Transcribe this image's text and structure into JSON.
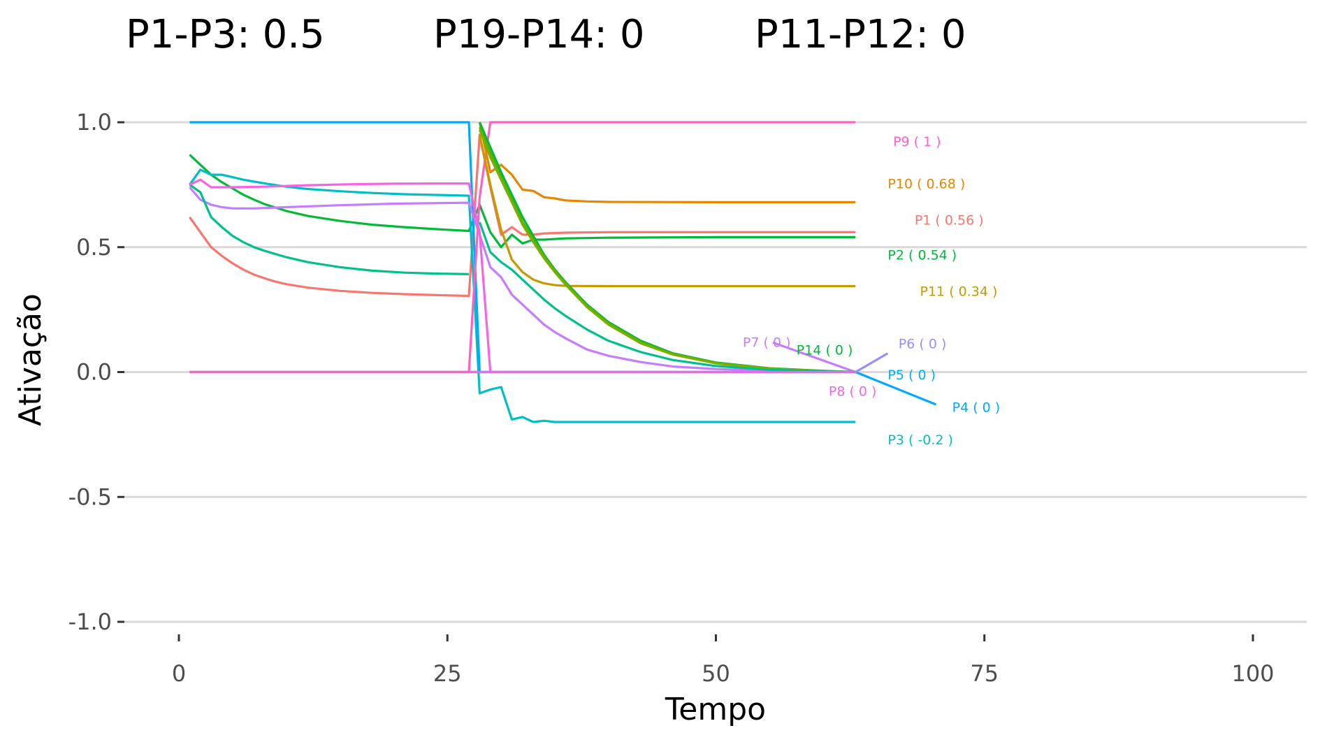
{
  "chart_data": {
    "type": "line",
    "title_parts": [
      "P1-P3:  0.5",
      "P19-P14:  0",
      "P11-P12:  0"
    ],
    "xlabel": "Tempo",
    "ylabel": "Ativação",
    "xlim": [
      -5,
      105
    ],
    "ylim": [
      -1.07,
      1.15
    ],
    "x_ticks": [
      0,
      25,
      50,
      75,
      100
    ],
    "x_tick_labels": [
      "0",
      "25",
      "50",
      "75",
      "100"
    ],
    "y_ticks": [
      -1.0,
      -0.5,
      0.0,
      0.5,
      1.0
    ],
    "y_tick_labels": [
      "-1.0",
      "-0.5",
      "0.0",
      "0.5",
      "1.0"
    ],
    "grid": "horizontal",
    "legend": "none (direct labels at line ends)",
    "series": [
      {
        "name": "P1",
        "label": "P1 ( 0.56 )",
        "color": "#F8766D",
        "points": [
          [
            1,
            0.62
          ],
          [
            2,
            0.56
          ],
          [
            3,
            0.5
          ],
          [
            4,
            0.465
          ],
          [
            5,
            0.435
          ],
          [
            6,
            0.41
          ],
          [
            7,
            0.39
          ],
          [
            8,
            0.375
          ],
          [
            9,
            0.362
          ],
          [
            10,
            0.352
          ],
          [
            12,
            0.338
          ],
          [
            15,
            0.325
          ],
          [
            18,
            0.317
          ],
          [
            21,
            0.312
          ],
          [
            24,
            0.308
          ],
          [
            27,
            0.305
          ],
          [
            28,
            0.95
          ],
          [
            29,
            0.74
          ],
          [
            30,
            0.55
          ],
          [
            31,
            0.58
          ],
          [
            32,
            0.55
          ],
          [
            33,
            0.55
          ],
          [
            34,
            0.555
          ],
          [
            36,
            0.558
          ],
          [
            40,
            0.56
          ],
          [
            50,
            0.56
          ],
          [
            63,
            0.56
          ]
        ],
        "label_at": [
          68.5,
          0.61
        ]
      },
      {
        "name": "P2",
        "label": "P2 ( 0.54 )",
        "color": "#00BA38",
        "points": [
          [
            1,
            0.87
          ],
          [
            2,
            0.83
          ],
          [
            3,
            0.79
          ],
          [
            4,
            0.76
          ],
          [
            5,
            0.735
          ],
          [
            6,
            0.71
          ],
          [
            7,
            0.69
          ],
          [
            8,
            0.672
          ],
          [
            10,
            0.645
          ],
          [
            12,
            0.625
          ],
          [
            15,
            0.605
          ],
          [
            18,
            0.59
          ],
          [
            21,
            0.58
          ],
          [
            24,
            0.572
          ],
          [
            27,
            0.565
          ],
          [
            28,
            0.67
          ],
          [
            29,
            0.56
          ],
          [
            30,
            0.5
          ],
          [
            31,
            0.55
          ],
          [
            32,
            0.515
          ],
          [
            33,
            0.53
          ],
          [
            34,
            0.53
          ],
          [
            36,
            0.535
          ],
          [
            40,
            0.538
          ],
          [
            50,
            0.54
          ],
          [
            63,
            0.54
          ]
        ],
        "label_at": [
          66,
          0.47
        ]
      },
      {
        "name": "P3",
        "label": "P3 ( -0.2 )",
        "color": "#00BFC4",
        "points": [
          [
            1,
            0.75
          ],
          [
            2,
            0.81
          ],
          [
            3,
            0.79
          ],
          [
            4,
            0.79
          ],
          [
            5,
            0.78
          ],
          [
            6,
            0.77
          ],
          [
            8,
            0.755
          ],
          [
            10,
            0.742
          ],
          [
            12,
            0.733
          ],
          [
            15,
            0.724
          ],
          [
            18,
            0.717
          ],
          [
            21,
            0.712
          ],
          [
            24,
            0.709
          ],
          [
            27,
            0.706
          ],
          [
            28,
            -0.085
          ],
          [
            29,
            -0.07
          ],
          [
            30,
            -0.06
          ],
          [
            31,
            -0.19
          ],
          [
            32,
            -0.18
          ],
          [
            33,
            -0.2
          ],
          [
            34,
            -0.195
          ],
          [
            35,
            -0.2
          ],
          [
            40,
            -0.2
          ],
          [
            50,
            -0.2
          ],
          [
            63,
            -0.2
          ]
        ],
        "label_at": [
          66,
          -0.27
        ]
      },
      {
        "name": "P4",
        "label": "P4 ( 0 )",
        "color": "#00A9FF",
        "points": [
          [
            1,
            1.0
          ],
          [
            10,
            1.0
          ],
          [
            20,
            1.0
          ],
          [
            27,
            1.0
          ],
          [
            28,
            0.0
          ],
          [
            40,
            0.0
          ],
          [
            63,
            0.0
          ],
          [
            70.5,
            -0.13
          ]
        ],
        "label_at": [
          72,
          -0.14
        ]
      },
      {
        "name": "P5",
        "label": "P5 ( 0 )",
        "color": "#00B0F6",
        "points": [
          [
            1,
            0.0
          ],
          [
            27,
            0.0
          ],
          [
            28,
            0.0
          ],
          [
            63,
            0.0
          ]
        ],
        "label_at": [
          66,
          -0.01
        ]
      },
      {
        "name": "P6",
        "label": "P6 ( 0 )",
        "color": "#9590FF",
        "points": [
          [
            1,
            0.0
          ],
          [
            27,
            0.0
          ],
          [
            28,
            0.0
          ],
          [
            63,
            0.0
          ],
          [
            66,
            0.075
          ]
        ],
        "label_at": [
          67,
          0.115
        ]
      },
      {
        "name": "P7",
        "label": "P7 ( 0 )",
        "color": "#C77CFF",
        "points": [
          [
            1,
            0.74
          ],
          [
            2,
            0.69
          ],
          [
            3,
            0.67
          ],
          [
            4,
            0.66
          ],
          [
            5,
            0.655
          ],
          [
            7,
            0.655
          ],
          [
            10,
            0.66
          ],
          [
            15,
            0.668
          ],
          [
            20,
            0.674
          ],
          [
            27,
            0.678
          ],
          [
            28,
            0.55
          ],
          [
            29,
            0.42
          ],
          [
            30,
            0.38
          ],
          [
            31,
            0.31
          ],
          [
            32,
            0.27
          ],
          [
            33,
            0.23
          ],
          [
            34,
            0.19
          ],
          [
            35,
            0.16
          ],
          [
            36,
            0.135
          ],
          [
            38,
            0.09
          ],
          [
            40,
            0.065
          ],
          [
            43,
            0.04
          ],
          [
            46,
            0.022
          ],
          [
            50,
            0.012
          ],
          [
            55,
            0.005
          ],
          [
            60,
            0.002
          ],
          [
            63,
            0.0
          ],
          [
            55.3,
            0.118
          ]
        ],
        "label_at": [
          52.5,
          0.12
        ]
      },
      {
        "name": "P8",
        "label": "P8 ( 0 )",
        "color": "#ED68ED",
        "points": [
          [
            1,
            0.0
          ],
          [
            27,
            0.0
          ],
          [
            28,
            0.0
          ],
          [
            40,
            0.0
          ],
          [
            63,
            0.0
          ]
        ],
        "label_at": [
          60.5,
          -0.075
        ]
      },
      {
        "name": "P9",
        "label": "P9 ( 1 )",
        "color": "#FF61C3",
        "points": [
          [
            1,
            0.0
          ],
          [
            27,
            0.0
          ],
          [
            28,
            0.7
          ],
          [
            29,
            1.0
          ],
          [
            40,
            1.0
          ],
          [
            63,
            1.0
          ]
        ],
        "label_at": [
          66.5,
          0.925
        ]
      },
      {
        "name": "P10",
        "label": "P10 ( 0.68 )",
        "color": "#E58700",
        "points": [
          [
            28,
            1.0
          ],
          [
            29,
            0.8
          ],
          [
            30,
            0.83
          ],
          [
            31,
            0.79
          ],
          [
            32,
            0.73
          ],
          [
            33,
            0.725
          ],
          [
            34,
            0.7
          ],
          [
            35,
            0.695
          ],
          [
            36,
            0.687
          ],
          [
            38,
            0.683
          ],
          [
            40,
            0.681
          ],
          [
            50,
            0.68
          ],
          [
            63,
            0.68
          ]
        ],
        "label_at": [
          66,
          0.755
        ]
      },
      {
        "name": "P11",
        "label": "P11 ( 0.34 )",
        "color": "#C49A00",
        "points": [
          [
            28,
            0.95
          ],
          [
            29,
            0.75
          ],
          [
            30,
            0.57
          ],
          [
            31,
            0.45
          ],
          [
            32,
            0.4
          ],
          [
            33,
            0.37
          ],
          [
            34,
            0.355
          ],
          [
            35,
            0.348
          ],
          [
            36,
            0.345
          ],
          [
            40,
            0.344
          ],
          [
            50,
            0.344
          ],
          [
            63,
            0.344
          ]
        ],
        "label_at": [
          69,
          0.325
        ]
      },
      {
        "name": "P14",
        "label": "P14 ( 0 )",
        "color": "#00BA38",
        "points": [
          [
            28,
            1.0
          ],
          [
            29,
            0.9
          ],
          [
            30,
            0.8
          ],
          [
            31,
            0.71
          ],
          [
            32,
            0.62
          ],
          [
            33,
            0.545
          ],
          [
            34,
            0.47
          ],
          [
            35,
            0.41
          ],
          [
            36,
            0.36
          ],
          [
            38,
            0.27
          ],
          [
            40,
            0.2
          ],
          [
            43,
            0.125
          ],
          [
            46,
            0.075
          ],
          [
            50,
            0.038
          ],
          [
            55,
            0.015
          ],
          [
            60,
            0.005
          ],
          [
            63,
            0.0
          ]
        ],
        "label_at": [
          57.5,
          0.09
        ]
      },
      {
        "name": "P12",
        "label": "",
        "color": "#53B400",
        "points": [
          [
            28,
            0.98
          ],
          [
            29,
            0.88
          ],
          [
            30,
            0.78
          ],
          [
            31,
            0.69
          ],
          [
            32,
            0.6
          ],
          [
            33,
            0.53
          ],
          [
            34,
            0.465
          ],
          [
            35,
            0.405
          ],
          [
            36,
            0.355
          ],
          [
            38,
            0.265
          ],
          [
            40,
            0.195
          ],
          [
            43,
            0.12
          ],
          [
            46,
            0.072
          ],
          [
            50,
            0.036
          ],
          [
            55,
            0.014
          ],
          [
            60,
            0.004
          ],
          [
            63,
            0.0
          ]
        ]
      },
      {
        "name": "P13",
        "label": "",
        "color": "#7CAE00",
        "points": [
          [
            28,
            0.97
          ],
          [
            29,
            0.86
          ],
          [
            30,
            0.77
          ],
          [
            31,
            0.68
          ],
          [
            32,
            0.59
          ],
          [
            33,
            0.52
          ],
          [
            34,
            0.455
          ],
          [
            35,
            0.4
          ],
          [
            36,
            0.35
          ],
          [
            38,
            0.26
          ],
          [
            40,
            0.19
          ],
          [
            43,
            0.115
          ],
          [
            46,
            0.07
          ],
          [
            50,
            0.035
          ],
          [
            55,
            0.013
          ],
          [
            60,
            0.004
          ],
          [
            63,
            0.0
          ]
        ]
      },
      {
        "name": "P15",
        "label": "",
        "color": "#00C08B",
        "points": [
          [
            28,
            0.6
          ],
          [
            29,
            0.48
          ],
          [
            30,
            0.44
          ],
          [
            31,
            0.41
          ],
          [
            32,
            0.37
          ],
          [
            33,
            0.33
          ],
          [
            34,
            0.29
          ],
          [
            35,
            0.255
          ],
          [
            36,
            0.225
          ],
          [
            38,
            0.17
          ],
          [
            40,
            0.125
          ],
          [
            43,
            0.08
          ],
          [
            46,
            0.048
          ],
          [
            50,
            0.024
          ],
          [
            55,
            0.009
          ],
          [
            60,
            0.003
          ],
          [
            63,
            0.0
          ]
        ]
      },
      {
        "name": "P16",
        "label": "",
        "color": "#00C08B",
        "points": [
          [
            1,
            0.75
          ],
          [
            2,
            0.72
          ],
          [
            3,
            0.62
          ],
          [
            4,
            0.58
          ],
          [
            5,
            0.545
          ],
          [
            6,
            0.52
          ],
          [
            7,
            0.5
          ],
          [
            8,
            0.485
          ],
          [
            10,
            0.46
          ],
          [
            12,
            0.44
          ],
          [
            15,
            0.42
          ],
          [
            18,
            0.406
          ],
          [
            21,
            0.398
          ],
          [
            24,
            0.394
          ],
          [
            27,
            0.392
          ]
        ]
      },
      {
        "name": "P17",
        "label": "",
        "color": "#F564E3",
        "points": [
          [
            1,
            0.75
          ],
          [
            2,
            0.77
          ],
          [
            3,
            0.74
          ],
          [
            5,
            0.74
          ],
          [
            8,
            0.742
          ],
          [
            12,
            0.748
          ],
          [
            16,
            0.752
          ],
          [
            20,
            0.754
          ],
          [
            24,
            0.755
          ],
          [
            27,
            0.755
          ],
          [
            28,
            0.56
          ],
          [
            29,
            0.0
          ],
          [
            40,
            0.0
          ],
          [
            63,
            0.0
          ]
        ]
      }
    ]
  }
}
